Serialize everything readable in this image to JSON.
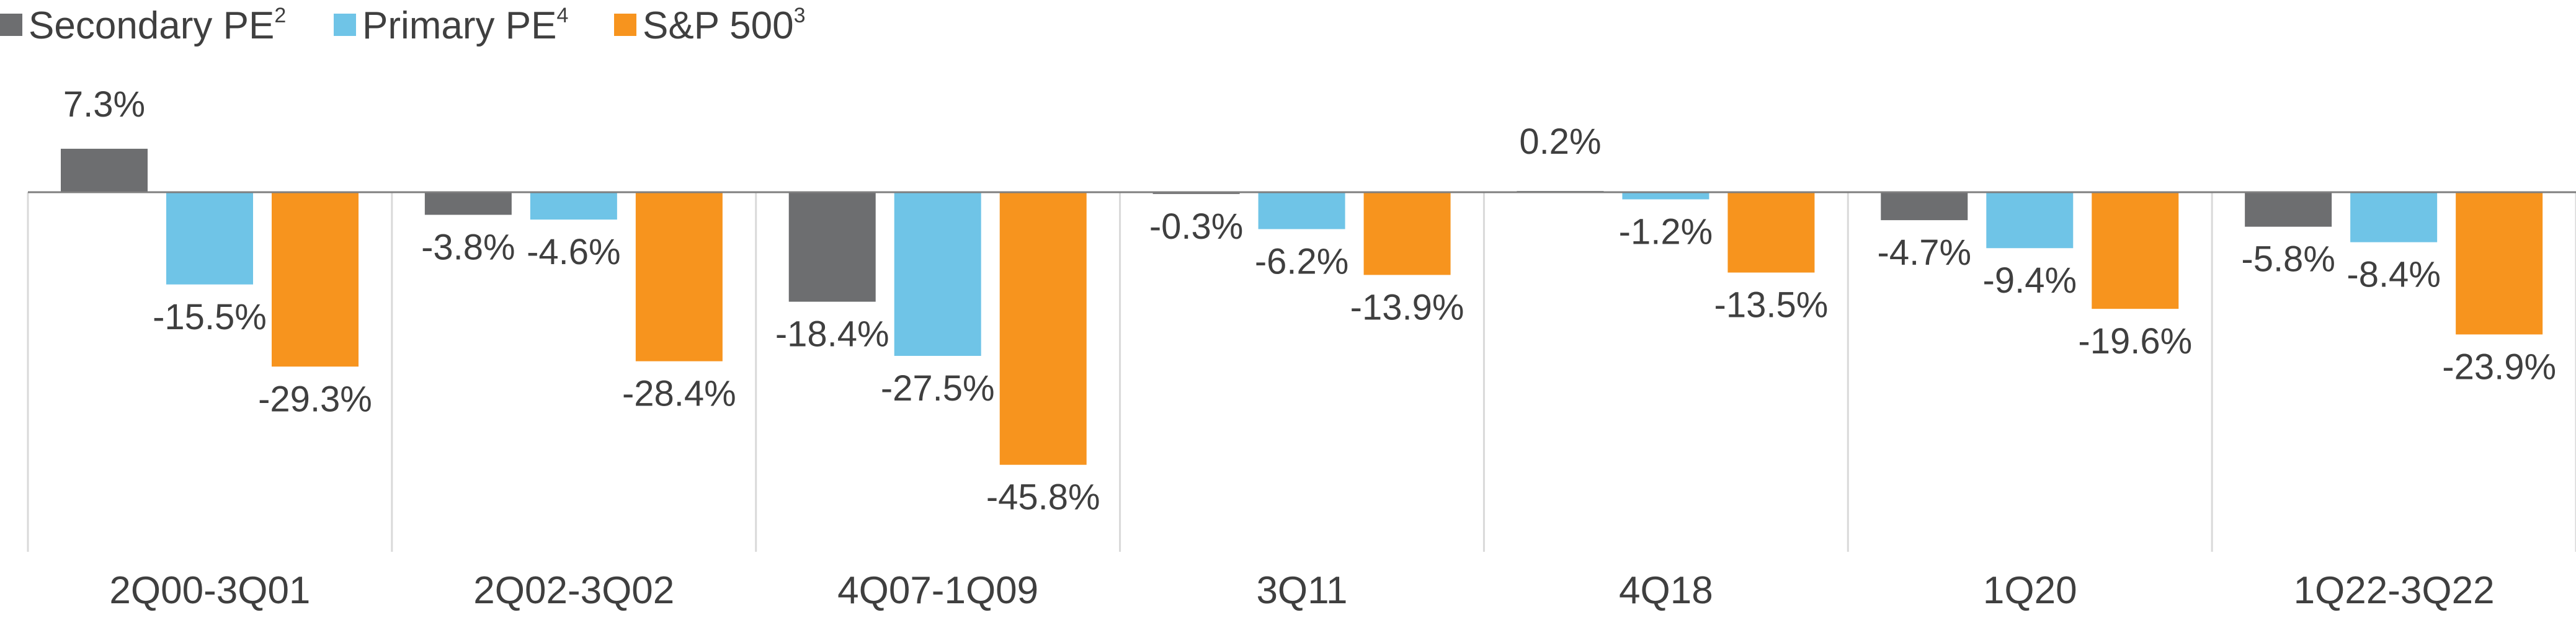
{
  "chart_data": {
    "type": "bar",
    "categories": [
      "2Q00-3Q01",
      "2Q02-3Q02",
      "4Q07-1Q09",
      "3Q11",
      "4Q18",
      "1Q20",
      "1Q22-3Q22"
    ],
    "series": [
      {
        "name": "Secondary PE",
        "superscript": "2",
        "color": "#6d6e70",
        "values": [
          7.3,
          -3.8,
          -18.4,
          -0.3,
          0.2,
          -4.7,
          -5.8
        ],
        "labels": [
          "7.3%",
          "-3.8%",
          "-18.4%",
          "-0.3%",
          "0.2%",
          "-4.7%",
          "-5.8%"
        ]
      },
      {
        "name": "Primary PE",
        "superscript": "4",
        "color": "#6fc4e7",
        "values": [
          -15.5,
          -4.6,
          -27.5,
          -6.2,
          -1.2,
          -9.4,
          -8.4
        ],
        "labels": [
          "-15.5%",
          "-4.6%",
          "-27.5%",
          "-6.2%",
          "-1.2%",
          "-9.4%",
          "-8.4%"
        ]
      },
      {
        "name": "S&P 500",
        "superscript": "3",
        "color": "#f7941e",
        "values": [
          -29.3,
          -28.4,
          -45.8,
          -13.9,
          -13.5,
          -19.6,
          -23.9
        ],
        "labels": [
          "-29.3%",
          "-28.4%",
          "-45.8%",
          "-13.9%",
          "-13.5%",
          "-19.6%",
          "-23.9%"
        ]
      }
    ],
    "ylim": [
      -60,
      10
    ],
    "legend_position": "top-left",
    "grid": false,
    "colors": {
      "axis": "#7f7f7f",
      "divider": "#d9d9d9",
      "text": "#3f3f3f"
    }
  }
}
